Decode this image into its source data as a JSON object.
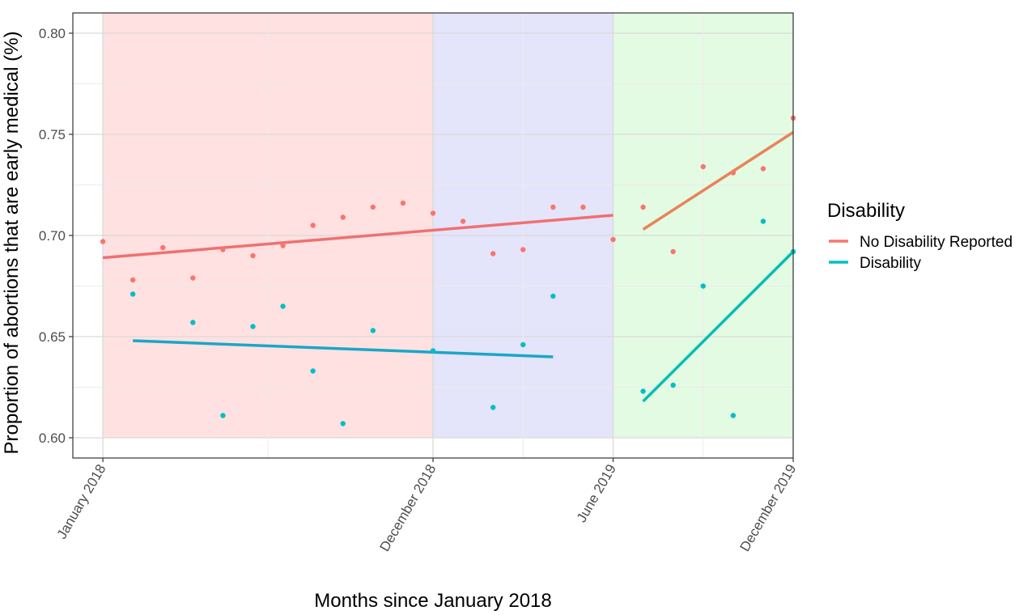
{
  "chart_data": {
    "type": "scatter",
    "title": "",
    "xlabel": "Months since January 2018",
    "ylabel": "Proportion of abortions that are early medical (%)",
    "xlim": [
      -1,
      23
    ],
    "ylim": [
      0.59,
      0.81
    ],
    "x_ticks": [
      {
        "x": 0,
        "label": "January 2018"
      },
      {
        "x": 11,
        "label": "December 2018"
      },
      {
        "x": 17,
        "label": "June 2019"
      },
      {
        "x": 23,
        "label": "December 2019"
      }
    ],
    "y_ticks": [
      {
        "y": 0.6,
        "label": "0.60"
      },
      {
        "y": 0.65,
        "label": "0.65"
      },
      {
        "y": 0.7,
        "label": "0.70"
      },
      {
        "y": 0.75,
        "label": "0.75"
      },
      {
        "y": 0.8,
        "label": "0.80"
      }
    ],
    "grid": true,
    "shaded_periods": [
      {
        "x_start": 0,
        "x_end": 11,
        "color": "#ffe1e1"
      },
      {
        "x_start": 11,
        "x_end": 17,
        "color": "#e4e4fb"
      },
      {
        "x_start": 17,
        "x_end": 24,
        "color": "#e3fbe3"
      }
    ],
    "legend": {
      "title": "Disability",
      "position": "right",
      "entries": [
        {
          "label": "No Disability Reported",
          "color": "#f8766d"
        },
        {
          "label": "Disability",
          "color": "#00bfc4"
        }
      ]
    },
    "series": [
      {
        "name": "No Disability Reported",
        "color": "#f8766d",
        "points": [
          [
            0,
            0.697
          ],
          [
            1,
            0.678
          ],
          [
            2,
            0.694
          ],
          [
            3,
            0.679
          ],
          [
            4,
            0.693
          ],
          [
            5,
            0.69
          ],
          [
            6,
            0.695
          ],
          [
            7,
            0.705
          ],
          [
            8,
            0.709
          ],
          [
            9,
            0.714
          ],
          [
            10,
            0.716
          ],
          [
            11,
            0.711
          ],
          [
            12,
            0.707
          ],
          [
            13,
            0.691
          ],
          [
            14,
            0.693
          ],
          [
            15,
            0.714
          ],
          [
            16,
            0.714
          ],
          [
            17,
            0.698
          ],
          [
            18,
            0.714
          ],
          [
            19,
            0.692
          ],
          [
            20,
            0.734
          ],
          [
            21,
            0.731
          ],
          [
            22,
            0.733
          ],
          [
            23,
            0.758
          ]
        ],
        "trend_lines": [
          {
            "x": [
              0,
              17
            ],
            "y": [
              0.689,
              0.71
            ],
            "color": "#f07070"
          },
          {
            "x": [
              18,
              23
            ],
            "y": [
              0.703,
              0.751
            ],
            "color": "#e8845a"
          }
        ]
      },
      {
        "name": "Disability",
        "color": "#00bfc4",
        "points": [
          [
            1,
            0.671
          ],
          [
            3,
            0.657
          ],
          [
            4,
            0.611
          ],
          [
            5,
            0.655
          ],
          [
            6,
            0.665
          ],
          [
            7,
            0.633
          ],
          [
            8,
            0.607
          ],
          [
            9,
            0.653
          ],
          [
            11,
            0.643
          ],
          [
            13,
            0.615
          ],
          [
            14,
            0.646
          ],
          [
            15,
            0.67
          ],
          [
            18,
            0.623
          ],
          [
            19,
            0.626
          ],
          [
            20,
            0.675
          ],
          [
            21,
            0.611
          ],
          [
            22,
            0.707
          ],
          [
            23,
            0.692
          ]
        ],
        "trend_lines": [
          {
            "x": [
              1,
              15
            ],
            "y": [
              0.648,
              0.64
            ],
            "color": "#1aa6c8"
          },
          {
            "x": [
              18,
              23
            ],
            "y": [
              0.618,
              0.692
            ],
            "color": "#00bfae"
          }
        ]
      }
    ]
  }
}
